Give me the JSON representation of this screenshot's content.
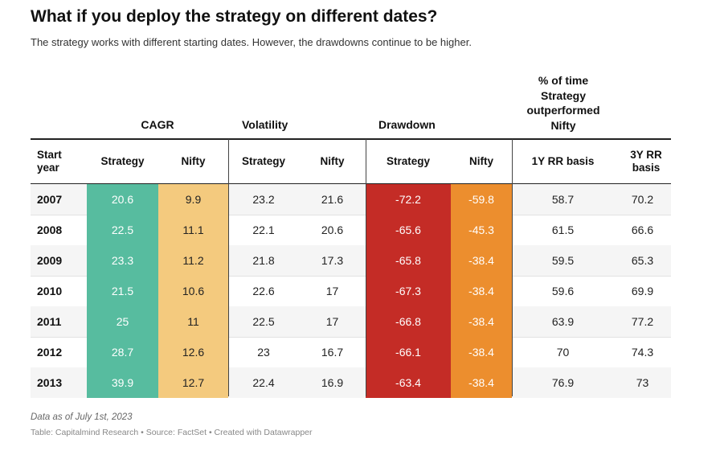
{
  "title": "What if you deploy the strategy on different dates?",
  "subtitle": "The strategy works with different starting dates. However, the drawdowns continue to be higher.",
  "note": "Data as of July 1st, 2023",
  "footer": "Table: Capitalmind Research • Source: FactSet • Created with Datawrapper",
  "colors": {
    "cagr_strategy": "#57bc9f",
    "cagr_nifty": "#f4ca7e",
    "drawdown_strategy": "#c42c26",
    "drawdown_nifty": "#ec8e2e",
    "row_alt": "#f5f5f5"
  },
  "chart_data": {
    "type": "table",
    "group_headers": {
      "cagr": "CAGR",
      "volatility": "Volatility",
      "drawdown": "Drawdown",
      "outperformed": "% of time Strategy outperformed Nifty"
    },
    "outperformed_lines": [
      "% of time",
      "Strategy",
      "outperformed",
      "Nifty"
    ],
    "columns": [
      "Start year",
      "Strategy",
      "Nifty",
      "Strategy",
      "Nifty",
      "Strategy",
      "Nifty",
      "1Y RR basis",
      "3Y RR basis"
    ],
    "first_column_lines": [
      "Start",
      "year"
    ],
    "last_column_lines": [
      "3Y RR",
      "basis"
    ],
    "rows": [
      [
        "2007",
        "20.6",
        "9.9",
        "23.2",
        "21.6",
        "-72.2",
        "-59.8",
        "58.7",
        "70.2"
      ],
      [
        "2008",
        "22.5",
        "11.1",
        "22.1",
        "20.6",
        "-65.6",
        "-45.3",
        "61.5",
        "66.6"
      ],
      [
        "2009",
        "23.3",
        "11.2",
        "21.8",
        "17.3",
        "-65.8",
        "-38.4",
        "59.5",
        "65.3"
      ],
      [
        "2010",
        "21.5",
        "10.6",
        "22.6",
        "17",
        "-67.3",
        "-38.4",
        "59.6",
        "69.9"
      ],
      [
        "2011",
        "25",
        "11",
        "22.5",
        "17",
        "-66.8",
        "-38.4",
        "63.9",
        "77.2"
      ],
      [
        "2012",
        "28.7",
        "12.6",
        "23",
        "16.7",
        "-66.1",
        "-38.4",
        "70",
        "74.3"
      ],
      [
        "2013",
        "39.9",
        "12.7",
        "22.4",
        "16.9",
        "-63.4",
        "-38.4",
        "76.9",
        "73"
      ]
    ]
  }
}
